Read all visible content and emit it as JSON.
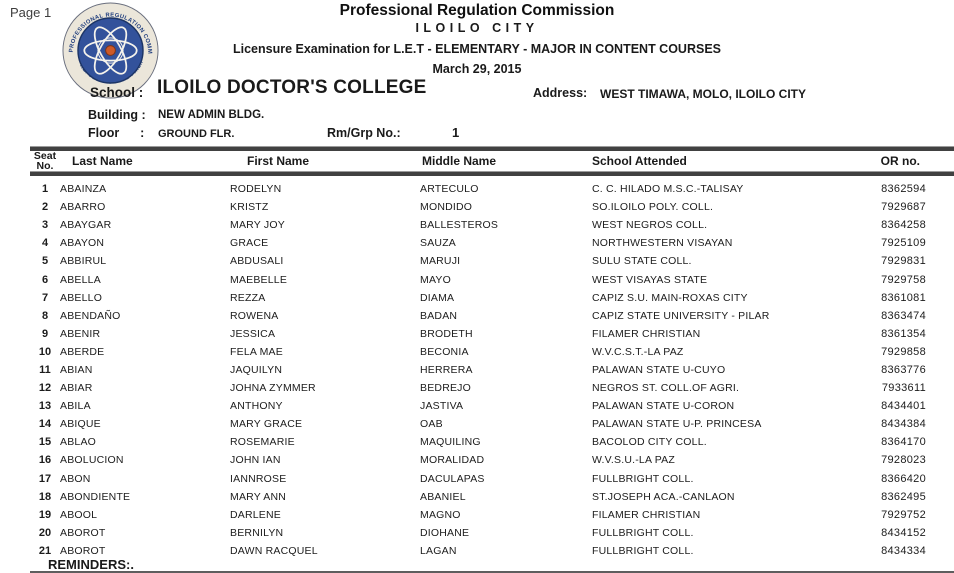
{
  "page": {
    "label": "Page 1"
  },
  "header": {
    "org": "Professional Regulation Commission",
    "city": "ILOILO CITY",
    "exam_line": "Licensure Examination for  L.E.T - ELEMENTARY - MAJOR IN CONTENT COURSES",
    "date": "March 29, 2015",
    "logo": {
      "name": "prc-seal",
      "ring_text_top": "PROFESSIONAL REGULATION COMMISSION",
      "ring_text_bottom": "REPUBLIC OF THE PHILIPPINES",
      "ring_color": "#ebe6da",
      "inner_color": "#33529b",
      "orbit_color": "#f5f3ec",
      "nucleus_color": "#cd5a28",
      "text_color": "#23407f"
    }
  },
  "school_info": {
    "school_label": "School :",
    "school_value": "ILOILO DOCTOR'S COLLEGE",
    "address_label": "Address:",
    "address_value": "WEST TIMAWA, MOLO, ILOILO CITY",
    "building_label": "Building :",
    "building_value": "NEW ADMIN BLDG.",
    "floor_label": "Floor      :",
    "floor_value": "GROUND FLR.",
    "rmgrp_label": "Rm/Grp No.:",
    "rmgrp_value": "1"
  },
  "table": {
    "bar_color": "#414141",
    "columns": {
      "seat": "Seat\nNo.",
      "last": "Last Name",
      "first": "First Name",
      "middle": "Middle Name",
      "school": "School Attended",
      "or": "OR no."
    },
    "rows": [
      {
        "seat": "1",
        "last": "ABAINZA",
        "first": "RODELYN",
        "middle": "ARTECULO",
        "school": "C. C. HILADO M.S.C.-TALISAY",
        "or": "8362594"
      },
      {
        "seat": "2",
        "last": "ABARRO",
        "first": "KRISTZ",
        "middle": "MONDIDO",
        "school": "SO.ILOILO POLY. COLL.",
        "or": "7929687"
      },
      {
        "seat": "3",
        "last": "ABAYGAR",
        "first": "MARY JOY",
        "middle": "BALLESTEROS",
        "school": "WEST NEGROS COLL.",
        "or": "8364258"
      },
      {
        "seat": "4",
        "last": "ABAYON",
        "first": "GRACE",
        "middle": "SAUZA",
        "school": "NORTHWESTERN VISAYAN",
        "or": "7925109"
      },
      {
        "seat": "5",
        "last": "ABBIRUL",
        "first": "ABDUSALI",
        "middle": "MARUJI",
        "school": "SULU STATE COLL.",
        "or": "7929831"
      },
      {
        "seat": "6",
        "last": "ABELLA",
        "first": "MAEBELLE",
        "middle": "MAYO",
        "school": "WEST VISAYAS STATE",
        "or": "7929758"
      },
      {
        "seat": "7",
        "last": "ABELLO",
        "first": "REZZA",
        "middle": "DIAMA",
        "school": "CAPIZ S.U. MAIN-ROXAS CITY",
        "or": "8361081"
      },
      {
        "seat": "8",
        "last": "ABENDAÑO",
        "first": "ROWENA",
        "middle": "BADAN",
        "school": "CAPIZ STATE UNIVERSITY - PILAR",
        "or": "8363474"
      },
      {
        "seat": "9",
        "last": "ABENIR",
        "first": "JESSICA",
        "middle": "BRODETH",
        "school": "FILAMER CHRISTIAN",
        "or": "8361354"
      },
      {
        "seat": "10",
        "last": "ABERDE",
        "first": "FELA MAE",
        "middle": "BECONIA",
        "school": "W.V.C.S.T.-LA PAZ",
        "or": "7929858"
      },
      {
        "seat": "11",
        "last": "ABIAN",
        "first": "JAQUILYN",
        "middle": "HERRERA",
        "school": "PALAWAN STATE U-CUYO",
        "or": "8363776"
      },
      {
        "seat": "12",
        "last": "ABIAR",
        "first": "JOHNA ZYMMER",
        "middle": "BEDREJO",
        "school": "NEGROS ST. COLL.OF AGRI.",
        "or": "7933611"
      },
      {
        "seat": "13",
        "last": "ABILA",
        "first": "ANTHONY",
        "middle": "JASTIVA",
        "school": "PALAWAN STATE U-CORON",
        "or": "8434401"
      },
      {
        "seat": "14",
        "last": "ABIQUE",
        "first": "MARY GRACE",
        "middle": "OAB",
        "school": "PALAWAN STATE U-P. PRINCESA",
        "or": "8434384"
      },
      {
        "seat": "15",
        "last": "ABLAO",
        "first": "ROSEMARIE",
        "middle": "MAQUILING",
        "school": "BACOLOD CITY COLL.",
        "or": "8364170"
      },
      {
        "seat": "16",
        "last": "ABOLUCION",
        "first": "JOHN IAN",
        "middle": "MORALIDAD",
        "school": "W.V.S.U.-LA PAZ",
        "or": "7928023"
      },
      {
        "seat": "17",
        "last": "ABON",
        "first": "IANNROSE",
        "middle": "DACULAPAS",
        "school": "FULLBRIGHT COLL.",
        "or": "8366420"
      },
      {
        "seat": "18",
        "last": "ABONDIENTE",
        "first": "MARY ANN",
        "middle": "ABANIEL",
        "school": "ST.JOSEPH ACA.-CANLAON",
        "or": "8362495"
      },
      {
        "seat": "19",
        "last": "ABOOL",
        "first": "DARLENE",
        "middle": "MAGNO",
        "school": "FILAMER CHRISTIAN",
        "or": "7929752"
      },
      {
        "seat": "20",
        "last": "ABOROT",
        "first": "BERNILYN",
        "middle": "DIOHANE",
        "school": "FULLBRIGHT COLL.",
        "or": "8434152"
      },
      {
        "seat": "21",
        "last": "ABOROT",
        "first": "DAWN RACQUEL",
        "middle": "LAGAN",
        "school": "FULLBRIGHT COLL.",
        "or": "8434334"
      }
    ]
  },
  "footer": {
    "reminders": "REMINDERS:."
  }
}
